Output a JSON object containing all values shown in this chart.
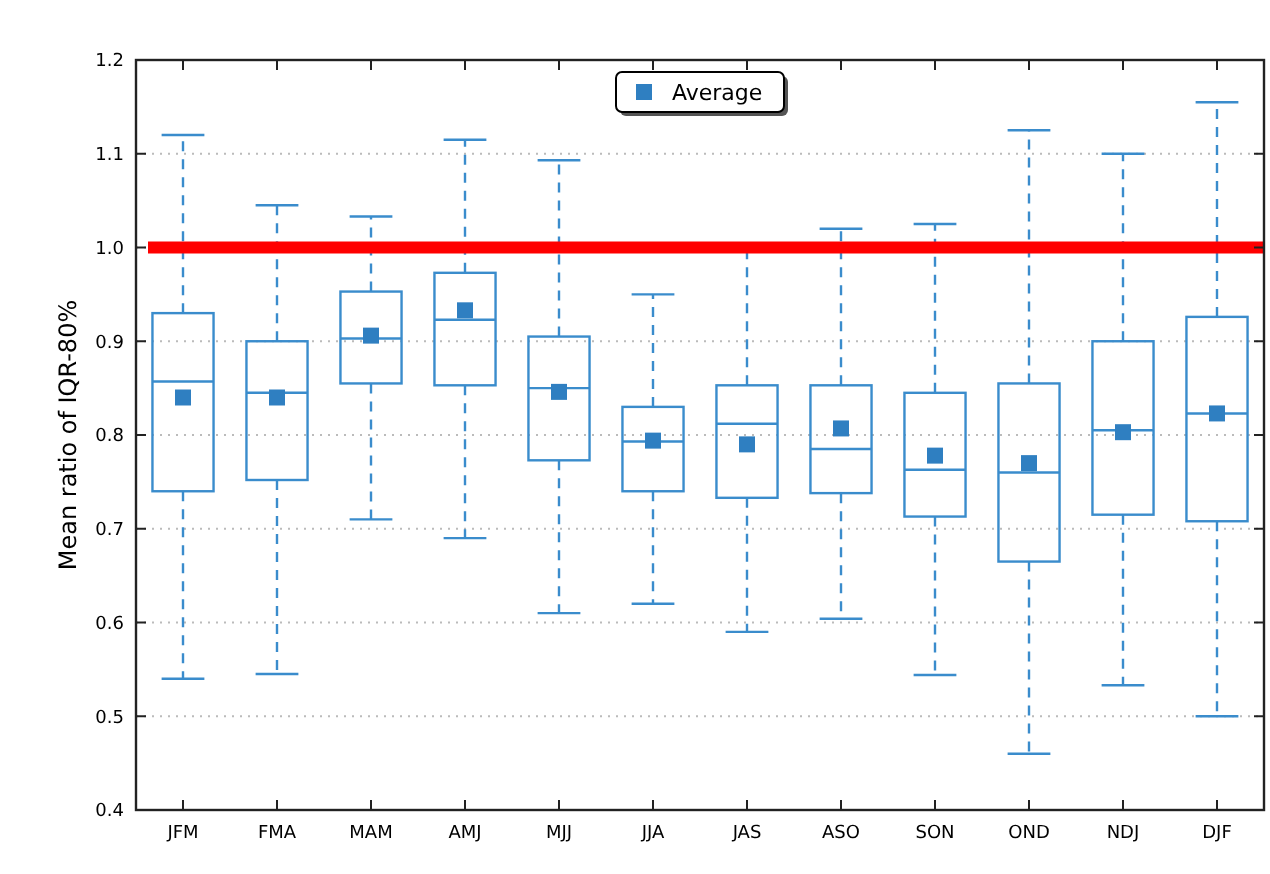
{
  "chart_data": {
    "type": "box",
    "ylabel": "Mean ratio of IQR-80%",
    "categories": [
      "JFM",
      "FMA",
      "MAM",
      "AMJ",
      "MJJ",
      "JJA",
      "JAS",
      "ASO",
      "SON",
      "OND",
      "NDJ",
      "DJF"
    ],
    "color": "#3a8ccc",
    "boxes": [
      {
        "low": 0.54,
        "q1": 0.74,
        "median": 0.857,
        "q3": 0.93,
        "high": 1.12
      },
      {
        "low": 0.545,
        "q1": 0.752,
        "median": 0.845,
        "q3": 0.9,
        "high": 1.045
      },
      {
        "low": 0.71,
        "q1": 0.855,
        "median": 0.903,
        "q3": 0.953,
        "high": 1.033
      },
      {
        "low": 0.69,
        "q1": 0.853,
        "median": 0.923,
        "q3": 0.973,
        "high": 1.115
      },
      {
        "low": 0.61,
        "q1": 0.773,
        "median": 0.85,
        "q3": 0.905,
        "high": 1.093
      },
      {
        "low": 0.62,
        "q1": 0.74,
        "median": 0.793,
        "q3": 0.83,
        "high": 0.95
      },
      {
        "low": 0.59,
        "q1": 0.733,
        "median": 0.812,
        "q3": 0.853,
        "high": 1.0
      },
      {
        "low": 0.604,
        "q1": 0.738,
        "median": 0.785,
        "q3": 0.853,
        "high": 1.02
      },
      {
        "low": 0.544,
        "q1": 0.713,
        "median": 0.763,
        "q3": 0.845,
        "high": 1.025
      },
      {
        "low": 0.46,
        "q1": 0.665,
        "median": 0.76,
        "q3": 0.855,
        "high": 1.125
      },
      {
        "low": 0.533,
        "q1": 0.715,
        "median": 0.805,
        "q3": 0.9,
        "high": 1.1
      },
      {
        "low": 0.5,
        "q1": 0.708,
        "median": 0.823,
        "q3": 0.926,
        "high": 1.155
      }
    ],
    "series": [
      {
        "type": "scatter",
        "name": "Average",
        "color": "#2f7fc1",
        "x": [
          "JFM",
          "FMA",
          "MAM",
          "AMJ",
          "MJJ",
          "JJA",
          "JAS",
          "ASO",
          "SON",
          "OND",
          "NDJ",
          "DJF"
        ],
        "values": [
          0.84,
          0.84,
          0.906,
          0.933,
          0.846,
          0.794,
          0.79,
          0.807,
          0.778,
          0.77,
          0.803,
          0.823
        ]
      }
    ],
    "marker": "square",
    "ylim": [
      0.4,
      1.2
    ],
    "yticks": [
      0.4,
      0.5,
      0.6,
      0.7,
      0.8,
      0.9,
      {
        "value": 1,
        "label": "1.0"
      },
      1.1,
      1.2
    ],
    "grid": "y",
    "legend": "top",
    "ref_lines": [
      {
        "axis": "y",
        "value": 1,
        "color": "#ff0000"
      }
    ]
  }
}
